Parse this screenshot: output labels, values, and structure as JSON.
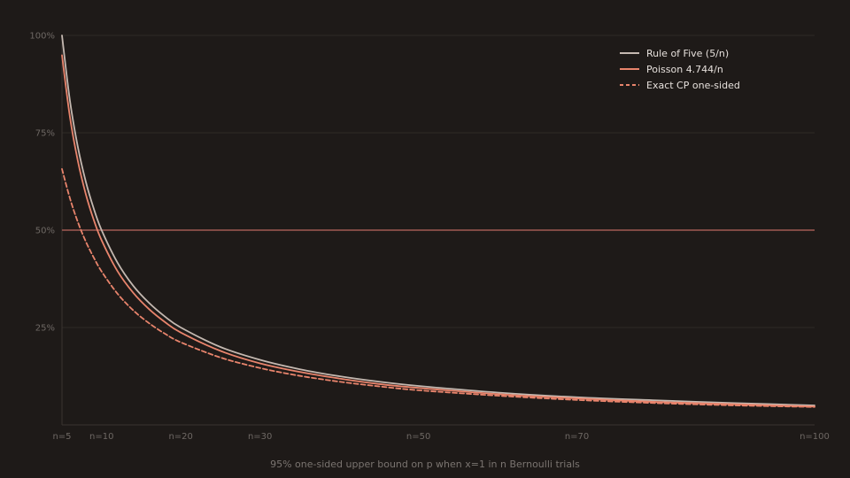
{
  "chart_data": {
    "type": "line",
    "title": "",
    "xlabel": "95% one-sided upper bound on p when x=1 in n Bernoulli trials",
    "ylabel": "",
    "xlim": [
      5,
      100
    ],
    "ylim": [
      0,
      100
    ],
    "grid": true,
    "legend_position": "top-right",
    "x_ticks": [
      {
        "value": 5,
        "label": "n=5"
      },
      {
        "value": 10,
        "label": "n=10"
      },
      {
        "value": 20,
        "label": "n=20"
      },
      {
        "value": 30,
        "label": "n=30"
      },
      {
        "value": 50,
        "label": "n=50"
      },
      {
        "value": 70,
        "label": "n=70"
      },
      {
        "value": 100,
        "label": "n=100"
      }
    ],
    "y_ticks": [
      {
        "value": 25,
        "label": "25%"
      },
      {
        "value": 50,
        "label": "50%"
      },
      {
        "value": 75,
        "label": "75%"
      },
      {
        "value": 100,
        "label": "100%"
      }
    ],
    "x": [
      5,
      6,
      7,
      8,
      9,
      10,
      12,
      14,
      16,
      18,
      20,
      25,
      30,
      35,
      40,
      45,
      50,
      60,
      70,
      80,
      90,
      100
    ],
    "reference_line": {
      "y": 50,
      "color": "#a05a52"
    },
    "series": [
      {
        "name": "Rule of Five (5/n)",
        "color": "#c4b8b0",
        "dash": "solid",
        "values": [
          100,
          83.3,
          71.4,
          62.5,
          55.6,
          50,
          41.7,
          35.7,
          31.3,
          27.8,
          25,
          20,
          16.7,
          14.3,
          12.5,
          11.1,
          10,
          8.3,
          7.1,
          6.3,
          5.6,
          5
        ]
      },
      {
        "name": "Poisson 4.744/n",
        "color": "#e8846c",
        "dash": "solid",
        "values": [
          94.9,
          79.1,
          67.8,
          59.3,
          52.7,
          47.4,
          39.5,
          33.9,
          29.7,
          26.4,
          23.7,
          19,
          15.8,
          13.6,
          11.9,
          10.5,
          9.5,
          7.9,
          6.8,
          5.9,
          5.3,
          4.7
        ]
      },
      {
        "name": "Exact CP one-sided",
        "color": "#e8846c",
        "dash": "dashed",
        "values": [
          65.7,
          58.2,
          52.1,
          47.1,
          43,
          39.4,
          33.7,
          29.4,
          26.1,
          23.4,
          21.2,
          17.3,
          14.6,
          12.6,
          11.1,
          9.9,
          8.9,
          7.5,
          6.4,
          5.6,
          5,
          4.6
        ]
      }
    ]
  }
}
